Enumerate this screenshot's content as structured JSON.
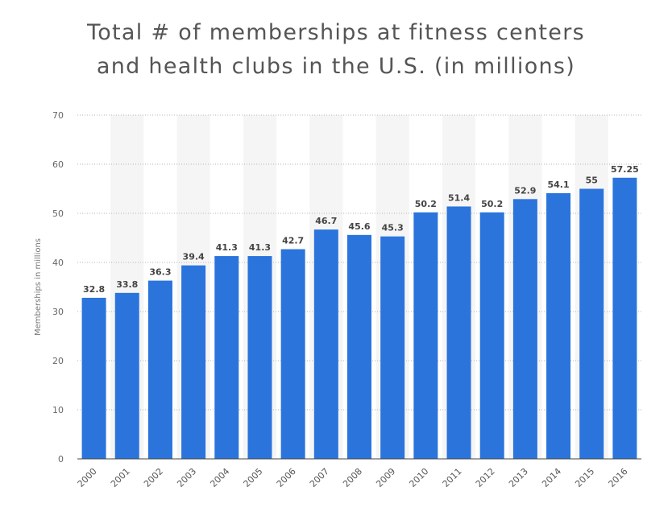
{
  "title_line1": "Total # of memberships at fitness centers",
  "title_line2": "and health clubs in the U.S. (in millions)",
  "colors": {
    "bar": "#2b74dc",
    "band": "#f5f5f5",
    "grid": "#b5b5b5",
    "axis": "#444444"
  },
  "chart_data": {
    "type": "bar",
    "title": "Total # of memberships at fitness centers and health clubs in the U.S. (in millions)",
    "xlabel": "",
    "ylabel": "Memberships in millions",
    "categories": [
      "2000",
      "2001",
      "2002",
      "2003",
      "2004",
      "2005",
      "2006",
      "2007",
      "2008",
      "2009",
      "2010",
      "2011",
      "2012",
      "2013",
      "2014",
      "2015",
      "2016"
    ],
    "values": [
      32.8,
      33.8,
      36.3,
      39.4,
      41.3,
      41.3,
      42.7,
      46.7,
      45.6,
      45.3,
      50.2,
      51.4,
      50.2,
      52.9,
      54.1,
      55,
      57.25
    ],
    "value_labels": [
      "32.8",
      "33.8",
      "36.3",
      "39.4",
      "41.3",
      "41.3",
      "42.7",
      "46.7",
      "45.6",
      "45.3",
      "50.2",
      "51.4",
      "50.2",
      "52.9",
      "54.1",
      "55",
      "57.25"
    ],
    "ylim": [
      0,
      70
    ],
    "yticks": [
      "0",
      "10",
      "20",
      "30",
      "40",
      "50",
      "60",
      "70"
    ],
    "grid": true,
    "legend": "none"
  }
}
